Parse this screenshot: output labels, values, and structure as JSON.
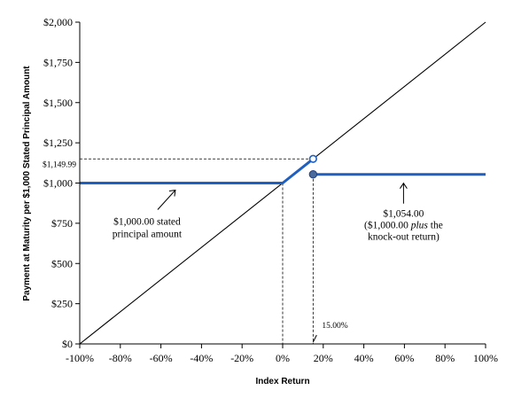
{
  "chart_data": {
    "type": "line",
    "xlabel": "Index Return",
    "ylabel": "Payment at Maturity per $1,000 Stated Principal Amount",
    "xlim": [
      -100,
      100
    ],
    "ylim": [
      0,
      2000
    ],
    "x_ticks": [
      -100,
      -80,
      -60,
      -40,
      -20,
      0,
      20,
      40,
      60,
      80,
      100
    ],
    "x_tick_labels": [
      "-100%",
      "-80%",
      "-60%",
      "-40%",
      "-20%",
      "0%",
      "20%",
      "40%",
      "60%",
      "80%",
      "100%"
    ],
    "y_ticks": [
      0,
      250,
      500,
      750,
      1000,
      1250,
      1500,
      1750,
      2000
    ],
    "y_tick_labels": [
      "$0",
      "$250",
      "$500",
      "$750",
      "$1,000",
      "$1,250",
      "$1,500",
      "$1,750",
      "$2,000"
    ],
    "grid": false,
    "series": [
      {
        "style": "diagonal",
        "color": "#000000",
        "x": [
          -100,
          100
        ],
        "y": [
          0,
          2000
        ]
      },
      {
        "style": "payoff-low",
        "color": "#1f5fbf",
        "x": [
          -100,
          0,
          14.999
        ],
        "y": [
          1000,
          1000,
          1149.99
        ]
      },
      {
        "style": "payoff-high",
        "color": "#1f5fbf",
        "x": [
          15,
          100
        ],
        "y": [
          1054,
          1054
        ]
      }
    ],
    "markers": {
      "open": {
        "x": 14.999,
        "y": 1149.99
      },
      "filled": {
        "x": 15,
        "y": 1054
      }
    },
    "reference_lines": {
      "h_value": 1149.99,
      "h_label": "$1,149.99",
      "v_zero": 0,
      "v_knockout": 15,
      "v_label": "15.00%"
    },
    "annotations": [
      {
        "lines": [
          "$1,000.00 stated",
          "principal amount"
        ],
        "target": {
          "x": -52,
          "y": 1000
        }
      },
      {
        "lines": [
          "$1,054.00",
          "($1,000.00 [plus] the",
          "knock-out return)"
        ],
        "target": {
          "x": 60,
          "y": 1054
        }
      }
    ]
  }
}
